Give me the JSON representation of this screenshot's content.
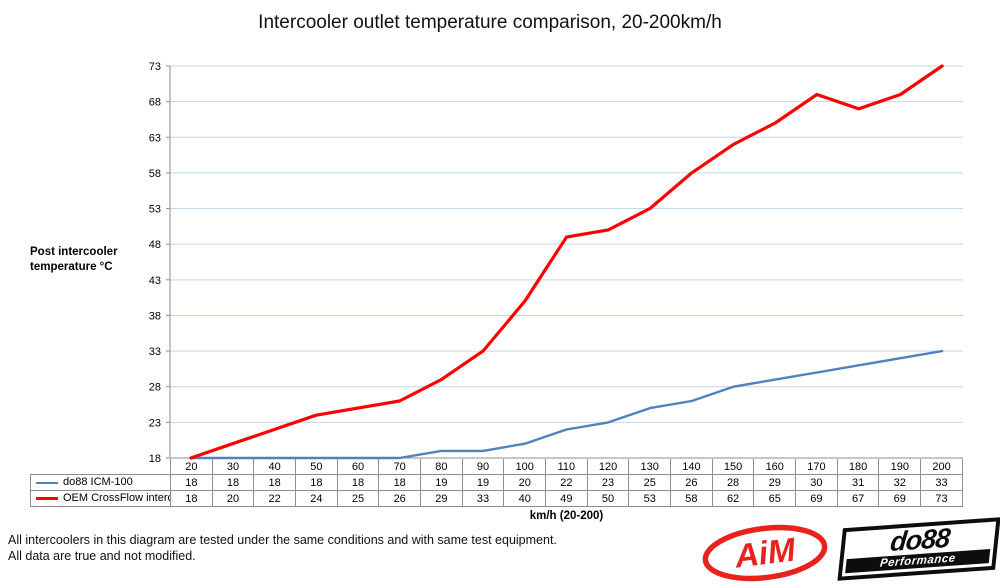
{
  "title": "Intercooler outlet temperature comparison, 20-200km/h",
  "y_axis_title": {
    "line1": "Post intercooler",
    "line2": "temperature °C"
  },
  "x_axis_label": "km/h (20-200)",
  "footer": {
    "line1": "All intercoolers in this diagram are tested under the same conditions and with same test equipment.",
    "line2": "All data are true and not modified."
  },
  "logos": {
    "aim": {
      "text": "AiM",
      "color": "#e8231d"
    },
    "do88": {
      "brand": "do88",
      "subtitle": "Performance",
      "color": "#0d0d0d"
    }
  },
  "chart_data": {
    "type": "line",
    "title": "Intercooler outlet temperature comparison, 20-200km/h",
    "xlabel": "km/h (20-200)",
    "ylabel": "Post intercooler temperature °C",
    "categories": [
      20,
      30,
      40,
      50,
      60,
      70,
      80,
      90,
      100,
      110,
      120,
      130,
      140,
      150,
      160,
      170,
      180,
      190,
      200
    ],
    "series": [
      {
        "name": "do88 ICM-100",
        "color": "#4F81BD",
        "values": [
          18,
          18,
          18,
          18,
          18,
          18,
          19,
          19,
          20,
          22,
          23,
          25,
          26,
          28,
          29,
          30,
          31,
          32,
          33
        ]
      },
      {
        "name": "OEM CrossFlow intercooler",
        "color": "#FE0000",
        "values": [
          18,
          20,
          22,
          24,
          25,
          26,
          29,
          33,
          40,
          49,
          50,
          53,
          58,
          62,
          65,
          69,
          67,
          69,
          73
        ]
      }
    ],
    "ylim": [
      18,
      73
    ],
    "ytick_step": 5,
    "grid": true,
    "gridline_color": "#C6D6EA",
    "axis_color": "#8E8E8E",
    "legend_position": "table-left"
  }
}
